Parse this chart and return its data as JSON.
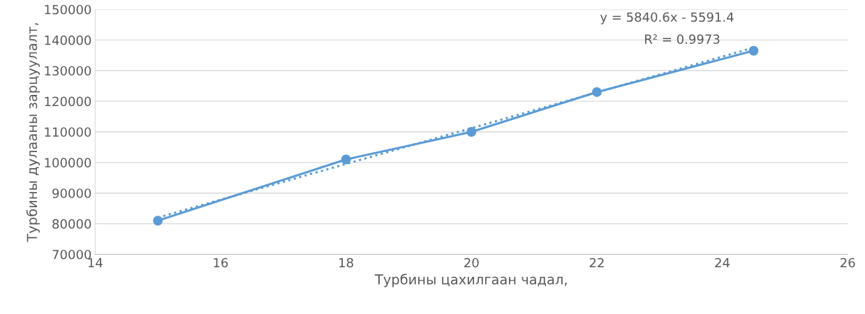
{
  "chart_data": {
    "type": "line",
    "xlabel": "Турбины цахилгаан чадал,",
    "ylabel": "Турбины дулааны зарцуулалт,",
    "series": [
      {
        "color": "#5b9bd5",
        "marker": "circle",
        "line_style": "solid",
        "x": [
          15,
          18,
          20,
          22,
          24.5
        ],
        "values": [
          81000,
          101000,
          110000,
          123000,
          136500
        ]
      },
      {
        "color": "#5b9bd5",
        "marker": "none",
        "line_style": "dotted",
        "x": [
          15,
          24.5
        ],
        "values": [
          82000,
          137500
        ]
      }
    ],
    "annotations": [
      "y = 5840.6x - 5591.4",
      "R² = 0.9973"
    ],
    "xlim": [
      14,
      26
    ],
    "xticks": [
      14,
      16,
      18,
      20,
      22,
      24,
      26
    ],
    "ylim": [
      70000,
      150000
    ],
    "yticks": [
      70000,
      80000,
      90000,
      100000,
      110000,
      120000,
      130000,
      140000,
      150000
    ],
    "grid": "y",
    "legend": false
  }
}
